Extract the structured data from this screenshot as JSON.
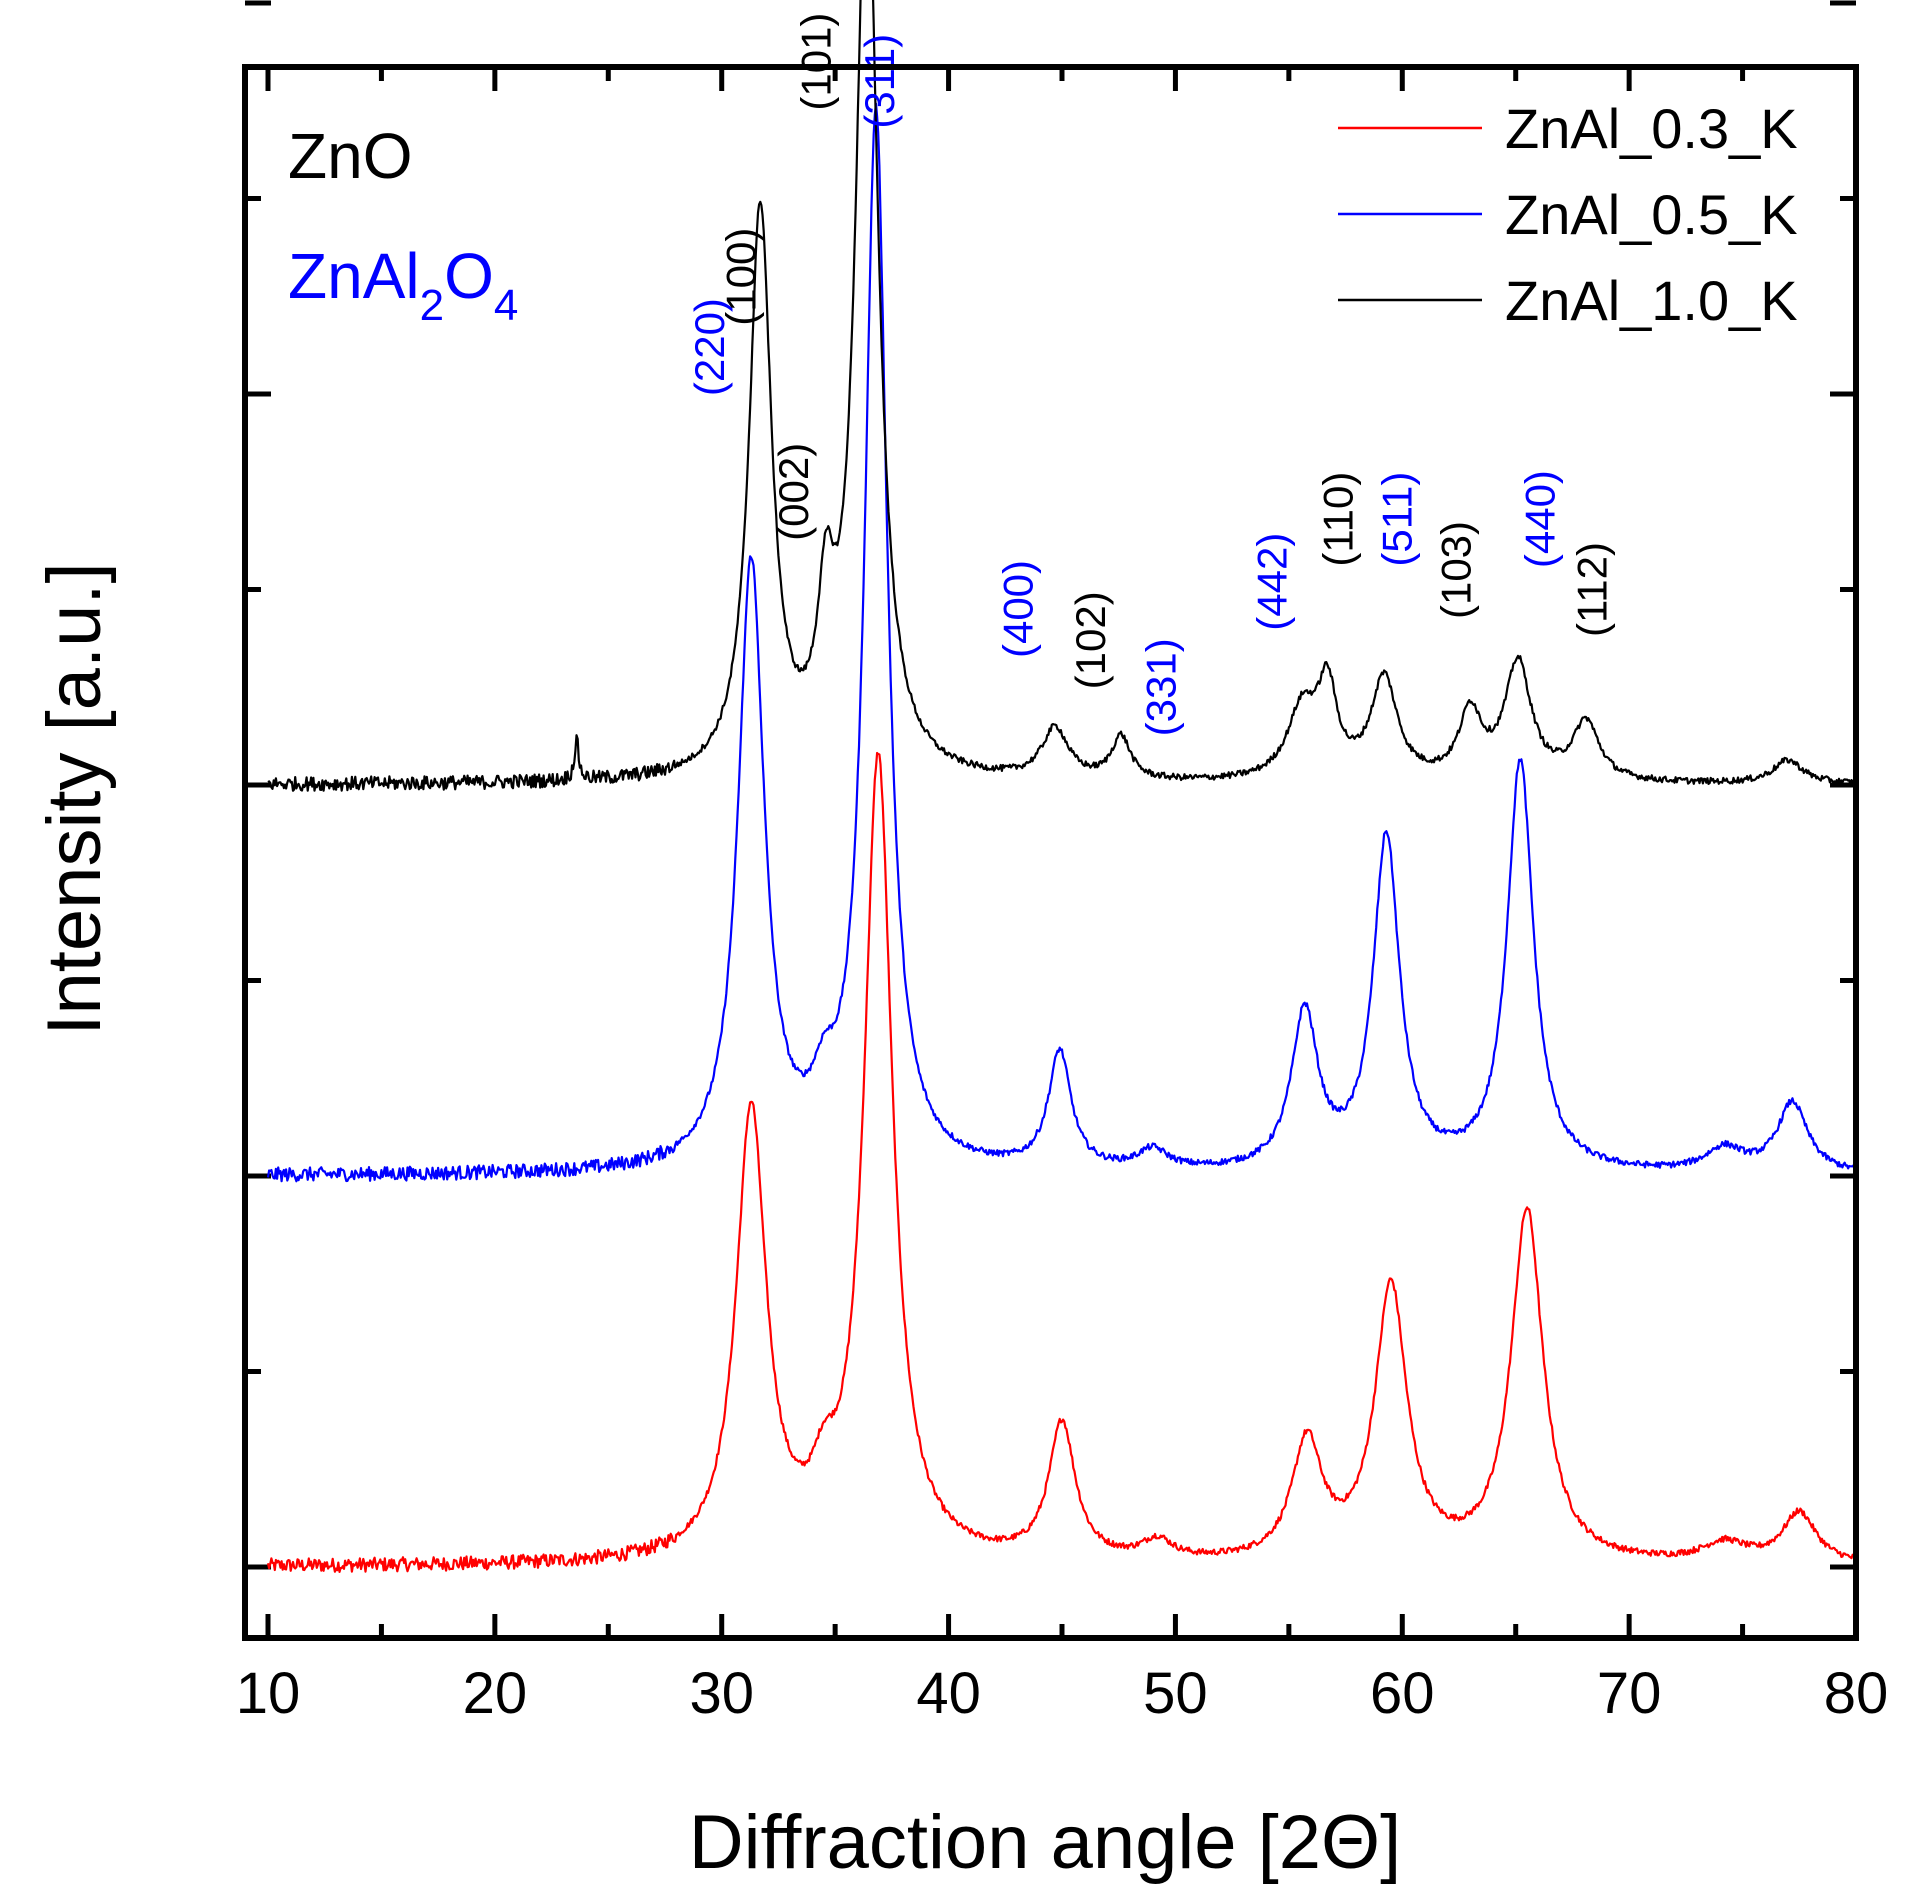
{
  "chart_data": {
    "type": "line",
    "xlabel": "Diffraction angle [2Θ]",
    "ylabel": "Intensity [a.u.]",
    "xlim": [
      9,
      81
    ],
    "ylim": [
      0,
      4.2
    ],
    "x_ticks": [
      10,
      20,
      30,
      40,
      50,
      60,
      70,
      80
    ],
    "x_tick_labels": [
      "10",
      "20",
      "30",
      "40",
      "50",
      "60",
      "70",
      "80"
    ],
    "y_tick_labels_shown": false,
    "grid": false,
    "legend_position": "top-right",
    "phase_labels": [
      {
        "name": "ZnO",
        "color": "#000000"
      },
      {
        "name": "ZnAl2O4",
        "text_main": "ZnAl",
        "sub1": "2",
        "text_mid": "O",
        "sub2": "4",
        "color": "#0000ff"
      }
    ],
    "series": [
      {
        "name": "ZnAl_0.3_K",
        "color": "#ff0000",
        "offset": 0.0,
        "peaks": [
          {
            "x": 31.3,
            "h": 1.15,
            "w": 0.8
          },
          {
            "x": 34.5,
            "h": 0.12,
            "w": 0.6
          },
          {
            "x": 36.9,
            "h": 2.05,
            "w": 0.75
          },
          {
            "x": 45.0,
            "h": 0.35,
            "w": 0.7
          },
          {
            "x": 49.2,
            "h": 0.05,
            "w": 0.8
          },
          {
            "x": 55.8,
            "h": 0.3,
            "w": 0.8
          },
          {
            "x": 59.5,
            "h": 0.7,
            "w": 0.85
          },
          {
            "x": 65.5,
            "h": 0.9,
            "w": 0.85
          },
          {
            "x": 74.2,
            "h": 0.05,
            "w": 1.2
          },
          {
            "x": 77.5,
            "h": 0.13,
            "w": 0.9
          }
        ]
      },
      {
        "name": "ZnAl_0.5_K",
        "color": "#0000ff",
        "offset": 1.0,
        "peaks": [
          {
            "x": 31.3,
            "h": 1.55,
            "w": 0.7
          },
          {
            "x": 34.5,
            "h": 0.12,
            "w": 0.6
          },
          {
            "x": 36.8,
            "h": 2.7,
            "w": 0.6
          },
          {
            "x": 44.9,
            "h": 0.3,
            "w": 0.6
          },
          {
            "x": 49.0,
            "h": 0.05,
            "w": 0.8
          },
          {
            "x": 55.7,
            "h": 0.4,
            "w": 0.7
          },
          {
            "x": 59.3,
            "h": 0.85,
            "w": 0.7
          },
          {
            "x": 65.2,
            "h": 1.05,
            "w": 0.7
          },
          {
            "x": 74.2,
            "h": 0.06,
            "w": 1.0
          },
          {
            "x": 77.2,
            "h": 0.18,
            "w": 0.8
          }
        ]
      },
      {
        "name": "ZnAl_1.0_K",
        "color": "#000000",
        "offset": 2.0,
        "peaks": [
          {
            "x": 23.6,
            "h": 0.1,
            "w": 0.12
          },
          {
            "x": 31.7,
            "h": 1.45,
            "w": 0.6
          },
          {
            "x": 34.6,
            "h": 0.35,
            "w": 0.45
          },
          {
            "x": 36.4,
            "h": 2.38,
            "w": 0.6
          },
          {
            "x": 44.7,
            "h": 0.13,
            "w": 0.7
          },
          {
            "x": 47.6,
            "h": 0.11,
            "w": 0.5
          },
          {
            "x": 55.6,
            "h": 0.18,
            "w": 0.8
          },
          {
            "x": 56.7,
            "h": 0.22,
            "w": 0.5
          },
          {
            "x": 59.2,
            "h": 0.26,
            "w": 0.7
          },
          {
            "x": 63.0,
            "h": 0.17,
            "w": 0.6
          },
          {
            "x": 65.1,
            "h": 0.3,
            "w": 0.7
          },
          {
            "x": 68.1,
            "h": 0.15,
            "w": 0.7
          },
          {
            "x": 77.0,
            "h": 0.06,
            "w": 0.8
          }
        ]
      }
    ],
    "annotations": [
      {
        "text": "(220)",
        "x": 30.1,
        "y": 3.12,
        "color": "#0000ff"
      },
      {
        "text": "(100)",
        "x": 31.5,
        "y": 3.3,
        "color": "#000000"
      },
      {
        "text": "(002)",
        "x": 33.8,
        "y": 2.75,
        "color": "#000000"
      },
      {
        "text": "(101)",
        "x": 34.8,
        "y": 3.85,
        "color": "#000000"
      },
      {
        "text": "(311)",
        "x": 37.6,
        "y": 3.8,
        "color": "#0000ff"
      },
      {
        "text": "(400)",
        "x": 43.7,
        "y": 2.45,
        "color": "#0000ff"
      },
      {
        "text": "(102)",
        "x": 46.9,
        "y": 2.37,
        "color": "#000000"
      },
      {
        "text": "(331)",
        "x": 50.0,
        "y": 2.25,
        "color": "#0000ff"
      },
      {
        "text": "(442)",
        "x": 54.9,
        "y": 2.52,
        "color": "#0000ff"
      },
      {
        "text": "(110)",
        "x": 57.8,
        "y": 2.68,
        "color": "#000000"
      },
      {
        "text": "(511)",
        "x": 60.4,
        "y": 2.68,
        "color": "#0000ff"
      },
      {
        "text": "(103)",
        "x": 63.0,
        "y": 2.55,
        "color": "#000000"
      },
      {
        "text": "(440)",
        "x": 66.7,
        "y": 2.68,
        "color": "#0000ff"
      },
      {
        "text": "(112)",
        "x": 69.0,
        "y": 2.5,
        "color": "#000000"
      }
    ]
  }
}
